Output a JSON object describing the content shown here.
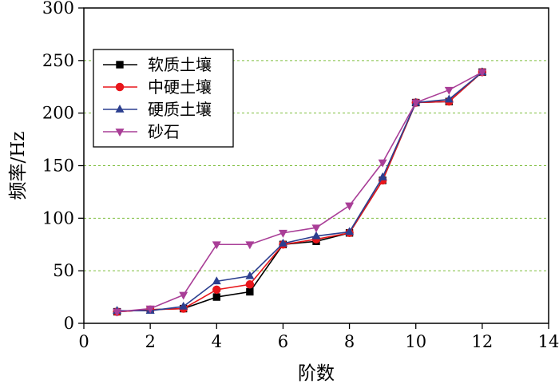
{
  "chart_data": {
    "type": "line",
    "xlabel": "阶数",
    "ylabel": "频率/Hz",
    "xlim": [
      0,
      14
    ],
    "ylim": [
      0,
      300
    ],
    "xticks": [
      0,
      2,
      4,
      6,
      8,
      10,
      12,
      14
    ],
    "yticks": [
      0,
      50,
      100,
      150,
      200,
      250,
      300
    ],
    "grid": "horizontal dashed green",
    "legend_position": "top-left",
    "x": [
      1,
      2,
      3,
      4,
      5,
      6,
      7,
      8,
      9,
      10,
      11,
      12
    ],
    "series": [
      {
        "name": "软质土壤",
        "marker": "square",
        "color": "#000000",
        "values": [
          11,
          13,
          14,
          25,
          30,
          75,
          78,
          86,
          136,
          210,
          211,
          239
        ]
      },
      {
        "name": "中硬土壤",
        "marker": "circle",
        "color": "#e8161b",
        "values": [
          11,
          13,
          14,
          32,
          37,
          75,
          80,
          86,
          136,
          210,
          211,
          239
        ]
      },
      {
        "name": "硬质土壤",
        "marker": "triangle-up",
        "color": "#2c3f8f",
        "values": [
          12,
          12,
          16,
          40,
          45,
          76,
          83,
          87,
          139,
          210,
          213,
          239
        ]
      },
      {
        "name": "砂石",
        "marker": "triangle-down",
        "color": "#a93e97",
        "values": [
          11,
          14,
          27,
          75,
          75,
          86,
          91,
          112,
          153,
          210,
          222,
          239
        ]
      }
    ]
  }
}
